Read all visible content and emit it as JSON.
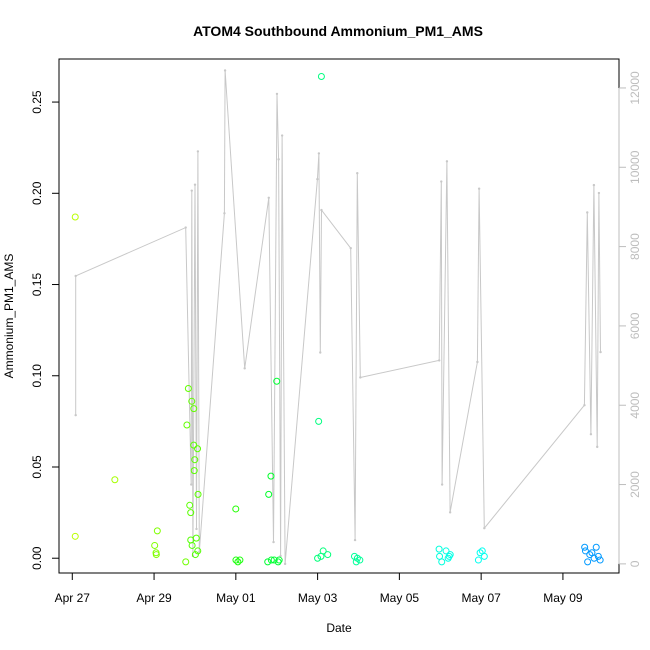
{
  "chart_data": {
    "type": "scatter",
    "title": "ATOM4 Southbound Ammonium_PM1_AMS",
    "xlabel": "Date",
    "ylabel": "Ammonium_PM1_AMS",
    "x_ticks": [
      "Apr 27",
      "Apr 29",
      "May 01",
      "May 03",
      "May 05",
      "May 07",
      "May 09"
    ],
    "y_ticks": [
      "0.00",
      "0.05",
      "0.10",
      "0.15",
      "0.20",
      "0.25"
    ],
    "y2_ticks": [
      "0",
      "2000",
      "4000",
      "6000",
      "8000",
      "10000",
      "12000"
    ],
    "xlim": [
      "2018-04-26T16:12",
      "2018-05-10T08:55"
    ],
    "ylim": [
      -0.0081,
      0.2736
    ],
    "y2lim": [
      -230,
      12730
    ],
    "grid": false,
    "series": [
      {
        "values": [
          {
            "x": "2018-04-27T01:44",
            "y": 0.187,
            "color": "#b9ff00"
          },
          {
            "x": "2018-04-27T01:44",
            "y": 0.012,
            "color": "#b9ff00"
          },
          {
            "x": "2018-04-28T00:59",
            "y": 0.043,
            "color": "#a6ff00"
          },
          {
            "x": "2018-04-29T01:55",
            "y": 0.015,
            "color": "#80ff00"
          },
          {
            "x": "2018-04-29T00:22",
            "y": 0.007,
            "color": "#80ff00"
          },
          {
            "x": "2018-04-29T01:19",
            "y": 0.002,
            "color": "#80ff00"
          },
          {
            "x": "2018-04-29T01:10",
            "y": 0.003,
            "color": "#80ff00"
          },
          {
            "x": "2018-04-29T18:36",
            "y": -0.002,
            "color": "#70ff00"
          },
          {
            "x": "2018-04-29T20:08",
            "y": 0.093,
            "color": "#62ff00"
          },
          {
            "x": "2018-04-29T19:17",
            "y": 0.073,
            "color": "#62ff00"
          },
          {
            "x": "2018-04-29T22:08",
            "y": 0.086,
            "color": "#62ff00"
          },
          {
            "x": "2018-04-29T23:19",
            "y": 0.082,
            "color": "#62ff00"
          },
          {
            "x": "2018-04-29T23:17",
            "y": 0.062,
            "color": "#5aff00"
          },
          {
            "x": "2018-04-30T01:31",
            "y": 0.06,
            "color": "#5aff00"
          },
          {
            "x": "2018-04-29T23:53",
            "y": 0.054,
            "color": "#5aff00"
          },
          {
            "x": "2018-04-29T23:35",
            "y": 0.048,
            "color": "#5aff00"
          },
          {
            "x": "2018-04-30T01:49",
            "y": 0.035,
            "color": "#5aff00"
          },
          {
            "x": "2018-04-29T20:56",
            "y": 0.029,
            "color": "#5aff00"
          },
          {
            "x": "2018-04-29T21:31",
            "y": 0.025,
            "color": "#5aff00"
          },
          {
            "x": "2018-04-29T21:32",
            "y": 0.01,
            "color": "#52ff00"
          },
          {
            "x": "2018-04-30T00:48",
            "y": 0.011,
            "color": "#52ff00"
          },
          {
            "x": "2018-04-29T22:20",
            "y": 0.007,
            "color": "#52ff00"
          },
          {
            "x": "2018-04-30T01:40",
            "y": 0.004,
            "color": "#52ff00"
          },
          {
            "x": "2018-04-30T00:16",
            "y": 0.002,
            "color": "#52ff00"
          },
          {
            "x": "2018-04-30T23:58",
            "y": 0.027,
            "color": "#21ff00"
          },
          {
            "x": "2018-05-01T00:05",
            "y": -0.001,
            "color": "#1aff0a"
          },
          {
            "x": "2018-05-01T01:12",
            "y": -0.002,
            "color": "#1aff0a"
          },
          {
            "x": "2018-05-01T02:23",
            "y": -0.001,
            "color": "#1aff0a"
          },
          {
            "x": "2018-05-01T20:37",
            "y": 0.045,
            "color": "#00ff2a"
          },
          {
            "x": "2018-05-01T19:17",
            "y": 0.035,
            "color": "#00ff2a"
          },
          {
            "x": "2018-05-02T00:01",
            "y": 0.097,
            "color": "#00ff33"
          },
          {
            "x": "2018-05-01T18:43",
            "y": -0.002,
            "color": "#00ff33"
          },
          {
            "x": "2018-05-01T20:50",
            "y": -0.001,
            "color": "#00ff33"
          },
          {
            "x": "2018-05-01T22:31",
            "y": -0.001,
            "color": "#00ff33"
          },
          {
            "x": "2018-05-02T00:50",
            "y": -0.002,
            "color": "#00ff33"
          },
          {
            "x": "2018-05-02T01:27",
            "y": -0.001,
            "color": "#00ff33"
          },
          {
            "x": "2018-05-03T02:14",
            "y": 0.264,
            "color": "#00ff80"
          },
          {
            "x": "2018-05-03T00:37",
            "y": 0.075,
            "color": "#00ff80"
          },
          {
            "x": "2018-05-02T23:59",
            "y": 0.0,
            "color": "#00ff7a"
          },
          {
            "x": "2018-05-03T01:59",
            "y": 0.001,
            "color": "#00ff7a"
          },
          {
            "x": "2018-05-03T03:16",
            "y": 0.004,
            "color": "#00ff7a"
          },
          {
            "x": "2018-05-03T05:56",
            "y": 0.002,
            "color": "#00ff7a"
          },
          {
            "x": "2018-05-03T21:38",
            "y": 0.001,
            "color": "#00ff99"
          },
          {
            "x": "2018-05-03T22:41",
            "y": -0.002,
            "color": "#00ff99"
          },
          {
            "x": "2018-05-03T23:21",
            "y": 0.0,
            "color": "#00ff99"
          },
          {
            "x": "2018-05-04T00:47",
            "y": -0.001,
            "color": "#00ff99"
          },
          {
            "x": "2018-05-05T23:19",
            "y": 0.005,
            "color": "#00ffdc"
          },
          {
            "x": "2018-05-05T23:35",
            "y": 0.001,
            "color": "#00ffdc"
          },
          {
            "x": "2018-05-06T00:52",
            "y": -0.002,
            "color": "#00ffdc"
          },
          {
            "x": "2018-05-06T03:24",
            "y": 0.004,
            "color": "#00ffe5"
          },
          {
            "x": "2018-05-06T04:38",
            "y": 0.0,
            "color": "#00ffe5"
          },
          {
            "x": "2018-05-06T05:15",
            "y": 0.001,
            "color": "#00ffe5"
          },
          {
            "x": "2018-05-06T05:50",
            "y": 0.002,
            "color": "#00ffe5"
          },
          {
            "x": "2018-05-06T22:23",
            "y": -0.001,
            "color": "#00fff0"
          },
          {
            "x": "2018-05-06T23:23",
            "y": 0.003,
            "color": "#00fff0"
          },
          {
            "x": "2018-05-07T00:40",
            "y": 0.004,
            "color": "#00fff0"
          },
          {
            "x": "2018-05-07T01:52",
            "y": 0.001,
            "color": "#00fff0"
          },
          {
            "x": "2018-05-09T12:46",
            "y": 0.006,
            "color": "#0099ff"
          },
          {
            "x": "2018-05-09T13:13",
            "y": 0.004,
            "color": "#0099ff"
          },
          {
            "x": "2018-05-09T14:30",
            "y": -0.002,
            "color": "#0099ff"
          },
          {
            "x": "2018-05-09T15:46",
            "y": 0.002,
            "color": "#0099ff"
          },
          {
            "x": "2018-05-09T17:02",
            "y": 0.003,
            "color": "#0099ff"
          },
          {
            "x": "2018-05-09T18:18",
            "y": 0.0,
            "color": "#0099ff"
          },
          {
            "x": "2018-05-09T19:33",
            "y": 0.006,
            "color": "#0099ff"
          },
          {
            "x": "2018-05-09T20:47",
            "y": 0.001,
            "color": "#0099ff"
          },
          {
            "x": "2018-05-09T21:51",
            "y": -0.001,
            "color": "#0099ff"
          }
        ]
      },
      {
        "color": "#c8c8c8",
        "values": [
          [
            "2018-04-27T02:00",
            3750
          ],
          [
            "2018-04-27T02:00",
            7260
          ],
          [
            "2018-04-29T18:34",
            8480
          ],
          [
            "2018-04-29T21:49",
            2000
          ],
          [
            "2018-04-29T22:08",
            9410
          ],
          [
            "2018-04-29T22:49",
            200
          ],
          [
            "2018-04-30T00:02",
            9560
          ],
          [
            "2018-04-30T00:54",
            880
          ],
          [
            "2018-04-30T01:44",
            10400
          ],
          [
            "2018-04-30T02:34",
            300
          ],
          [
            "2018-04-30T17:18",
            8840
          ],
          [
            "2018-04-30T17:41",
            12440
          ],
          [
            "2018-05-01T05:12",
            4930
          ],
          [
            "2018-05-01T19:20",
            9230
          ],
          [
            "2018-05-01T22:08",
            550
          ],
          [
            "2018-05-02T00:09",
            11850
          ],
          [
            "2018-05-02T01:07",
            10200
          ],
          [
            "2018-05-02T02:16",
            200
          ],
          [
            "2018-05-02T03:11",
            10800
          ],
          [
            "2018-05-02T04:56",
            0
          ],
          [
            "2018-05-02T23:51",
            9700
          ],
          [
            "2018-05-03T00:45",
            10350
          ],
          [
            "2018-05-03T01:34",
            5330
          ],
          [
            "2018-05-03T02:16",
            8920
          ],
          [
            "2018-05-03T19:27",
            7960
          ],
          [
            "2018-05-03T21:59",
            600
          ],
          [
            "2018-05-03T23:17",
            9850
          ],
          [
            "2018-05-04T01:04",
            4700
          ],
          [
            "2018-05-05T23:23",
            5130
          ],
          [
            "2018-05-06T00:36",
            9640
          ],
          [
            "2018-05-06T01:06",
            2000
          ],
          [
            "2018-05-06T03:55",
            10150
          ],
          [
            "2018-05-06T05:48",
            1300
          ],
          [
            "2018-05-06T21:48",
            5090
          ],
          [
            "2018-05-06T22:49",
            9460
          ],
          [
            "2018-05-07T01:52",
            900
          ],
          [
            "2018-05-09T12:38",
            4000
          ],
          [
            "2018-05-09T14:17",
            8860
          ],
          [
            "2018-05-09T16:26",
            3270
          ],
          [
            "2018-05-09T18:11",
            9550
          ],
          [
            "2018-05-09T20:08",
            2950
          ],
          [
            "2018-05-09T21:08",
            9350
          ],
          [
            "2018-05-09T22:05",
            5340
          ]
        ]
      }
    ]
  }
}
